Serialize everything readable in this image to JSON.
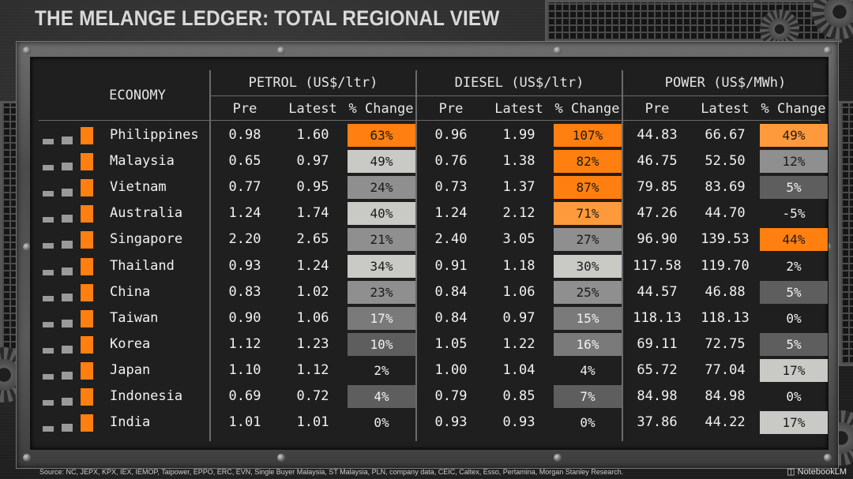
{
  "title": "THE MELANGE LEDGER: TOTAL REGIONAL VIEW",
  "headers": {
    "economy": "ECONOMY",
    "groups": [
      "PETROL (US$/ltr)",
      "DIESEL (US$/ltr)",
      "POWER (US$/MWh)"
    ],
    "sub": [
      "Pre",
      "Latest",
      "% Change"
    ]
  },
  "rows": [
    {
      "name": "Philippines",
      "petrol": [
        "0.98",
        "1.60",
        "63%"
      ],
      "diesel": [
        "0.96",
        "1.99",
        "107%"
      ],
      "power": [
        "44.83",
        "66.67",
        "49%"
      ]
    },
    {
      "name": "Malaysia",
      "petrol": [
        "0.65",
        "0.97",
        "49%"
      ],
      "diesel": [
        "0.76",
        "1.38",
        "82%"
      ],
      "power": [
        "46.75",
        "52.50",
        "12%"
      ]
    },
    {
      "name": "Vietnam",
      "petrol": [
        "0.77",
        "0.95",
        "24%"
      ],
      "diesel": [
        "0.73",
        "1.37",
        "87%"
      ],
      "power": [
        "79.85",
        "83.69",
        "5%"
      ]
    },
    {
      "name": "Australia",
      "petrol": [
        "1.24",
        "1.74",
        "40%"
      ],
      "diesel": [
        "1.24",
        "2.12",
        "71%"
      ],
      "power": [
        "47.26",
        "44.70",
        "-5%"
      ]
    },
    {
      "name": "Singapore",
      "petrol": [
        "2.20",
        "2.65",
        "21%"
      ],
      "diesel": [
        "2.40",
        "3.05",
        "27%"
      ],
      "power": [
        "96.90",
        "139.53",
        "44%"
      ]
    },
    {
      "name": "Thailand",
      "petrol": [
        "0.93",
        "1.24",
        "34%"
      ],
      "diesel": [
        "0.91",
        "1.18",
        "30%"
      ],
      "power": [
        "117.58",
        "119.70",
        "2%"
      ]
    },
    {
      "name": "China",
      "petrol": [
        "0.83",
        "1.02",
        "23%"
      ],
      "diesel": [
        "0.84",
        "1.06",
        "25%"
      ],
      "power": [
        "44.57",
        "46.88",
        "5%"
      ]
    },
    {
      "name": "Taiwan",
      "petrol": [
        "0.90",
        "1.06",
        "17%"
      ],
      "diesel": [
        "0.84",
        "0.97",
        "15%"
      ],
      "power": [
        "118.13",
        "118.13",
        "0%"
      ]
    },
    {
      "name": "Korea",
      "petrol": [
        "1.12",
        "1.23",
        "10%"
      ],
      "diesel": [
        "1.05",
        "1.22",
        "16%"
      ],
      "power": [
        "69.11",
        "72.75",
        "5%"
      ]
    },
    {
      "name": "Japan",
      "petrol": [
        "1.10",
        "1.12",
        "2%"
      ],
      "diesel": [
        "1.00",
        "1.04",
        "4%"
      ],
      "power": [
        "65.72",
        "77.04",
        "17%"
      ]
    },
    {
      "name": "Indonesia",
      "petrol": [
        "0.69",
        "0.72",
        "4%"
      ],
      "diesel": [
        "0.79",
        "0.85",
        "7%"
      ],
      "power": [
        "84.98",
        "84.98",
        "0%"
      ]
    },
    {
      "name": "India",
      "petrol": [
        "1.01",
        "1.01",
        "0%"
      ],
      "diesel": [
        "0.93",
        "0.93",
        "0%"
      ],
      "power": [
        "37.86",
        "44.22",
        "17%"
      ]
    }
  ],
  "cell_colors": {
    "petrol": [
      "#ff7f11",
      "#c9c9c6",
      "#8f8f8f",
      "#c9c9c6",
      "#8f8f8f",
      "#c9c9c6",
      "#8f8f8f",
      "#7a7a7a",
      "#5e5e5e",
      "transparent",
      "#5e5e5e",
      "transparent"
    ],
    "diesel": [
      "#ff7f11",
      "#ff7f11",
      "#ff7f11",
      "#ff9a3c",
      "#8f8f8f",
      "#c9c9c6",
      "#8f8f8f",
      "#7a7a7a",
      "#7a7a7a",
      "transparent",
      "#5e5e5e",
      "transparent"
    ],
    "power": [
      "#ff9a3c",
      "#8f8f8f",
      "#5e5e5e",
      "transparent",
      "#ff7f11",
      "transparent",
      "#5e5e5e",
      "transparent",
      "#5e5e5e",
      "#c9c9c6",
      "transparent",
      "#c9c9c6"
    ]
  },
  "source": "Source: NC, JEPX, KPX, IEX, IEMOP, Taipower, EPPO, ERC, EVN, Single Buyer Malaysia, ST Malaysia, PLN, company data, CEIC, Caltex, Esso, Pertamina, Morgan Stanley Research.",
  "brand": "NotebookLM",
  "colors": {
    "accent": "#ff7f11",
    "light_orange": "#ff9a3c",
    "grey_light": "#c9c9c6"
  }
}
